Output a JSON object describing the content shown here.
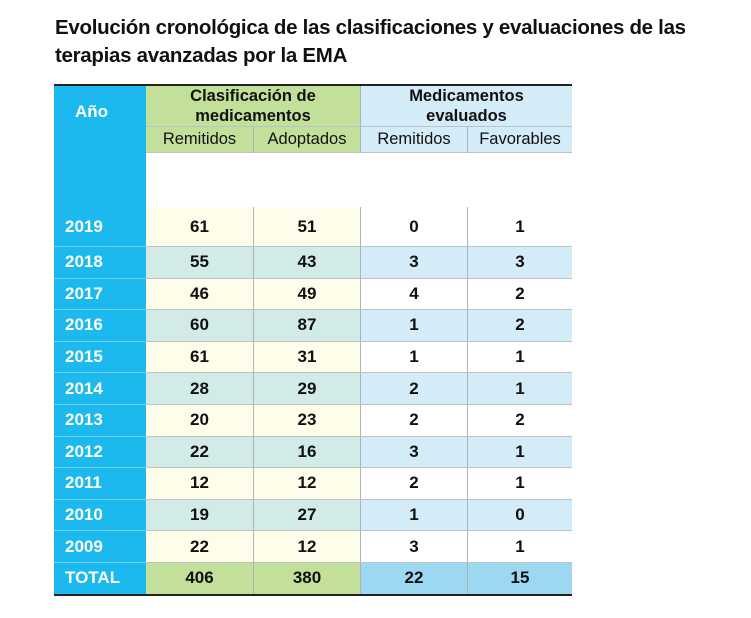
{
  "title": "Evolución cronológica de las clasificaciones y evaluaciones de las terapias avanzadas por la EMA",
  "headers": {
    "year": "Año",
    "group1": "Clasificación de medicamentos",
    "group2": "Medicamentos evaluados",
    "sub": [
      "Remitidos",
      "Adoptados",
      "Remitidos",
      "Favorables"
    ]
  },
  "rows": [
    {
      "year": "2019",
      "v": [
        "61",
        "51",
        "0",
        "1"
      ]
    },
    {
      "year": "2018",
      "v": [
        "55",
        "43",
        "3",
        "3"
      ]
    },
    {
      "year": "2017",
      "v": [
        "46",
        "49",
        "4",
        "2"
      ]
    },
    {
      "year": "2016",
      "v": [
        "60",
        "87",
        "1",
        "2"
      ]
    },
    {
      "year": "2015",
      "v": [
        "61",
        "31",
        "1",
        "1"
      ]
    },
    {
      "year": "2014",
      "v": [
        "28",
        "29",
        "2",
        "1"
      ]
    },
    {
      "year": "2013",
      "v": [
        "20",
        "23",
        "2",
        "2"
      ]
    },
    {
      "year": "2012",
      "v": [
        "22",
        "16",
        "3",
        "1"
      ]
    },
    {
      "year": "2011",
      "v": [
        "12",
        "12",
        "2",
        "1"
      ]
    },
    {
      "year": "2010",
      "v": [
        "19",
        "27",
        "1",
        "0"
      ]
    },
    {
      "year": "2009",
      "v": [
        "22",
        "12",
        "3",
        "1"
      ]
    }
  ],
  "total": {
    "label": "TOTAL",
    "v": [
      "406",
      "380",
      "22",
      "15"
    ]
  },
  "colors": {
    "year_col": "#1cb9ee",
    "green": "#c2e09a",
    "light_blue": "#d4ebf8",
    "cream": "#fefdea",
    "teal": "#d3ebe6",
    "total_blue": "#9dd8f3"
  }
}
